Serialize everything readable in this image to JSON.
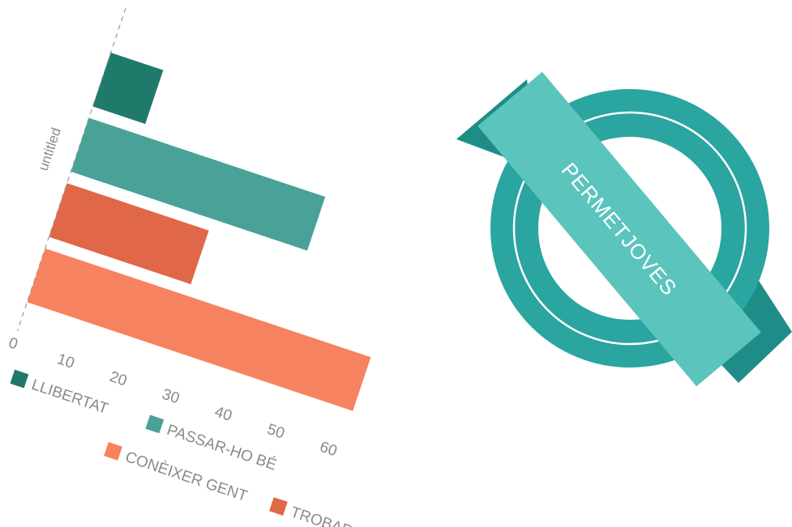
{
  "chart_data": {
    "type": "bar",
    "orientation": "horizontal",
    "categories": [
      "untitled"
    ],
    "series": [
      {
        "name": "LLIBERTAT",
        "values": [
          10
        ],
        "color": "#1f7a6c"
      },
      {
        "name": "PASSAR-HO BÉ",
        "values": [
          45
        ],
        "color": "#4aa198"
      },
      {
        "name": "TROBAR-SE",
        "values": [
          27
        ],
        "color": "#e06848"
      },
      {
        "name": "CONÈIXER GENT",
        "values": [
          62
        ],
        "color": "#f7825f"
      }
    ],
    "x_ticks": [
      0,
      10,
      20,
      30,
      40,
      50,
      60
    ],
    "xlim": [
      0,
      60
    ],
    "grid": false,
    "legend_position": "bottom"
  },
  "badge": {
    "text": "PERMETJOVES",
    "ring_color": "#2aa59f",
    "ribbon_color": "#5bc4bd",
    "ribbon_tail_color": "#1f8d87"
  }
}
